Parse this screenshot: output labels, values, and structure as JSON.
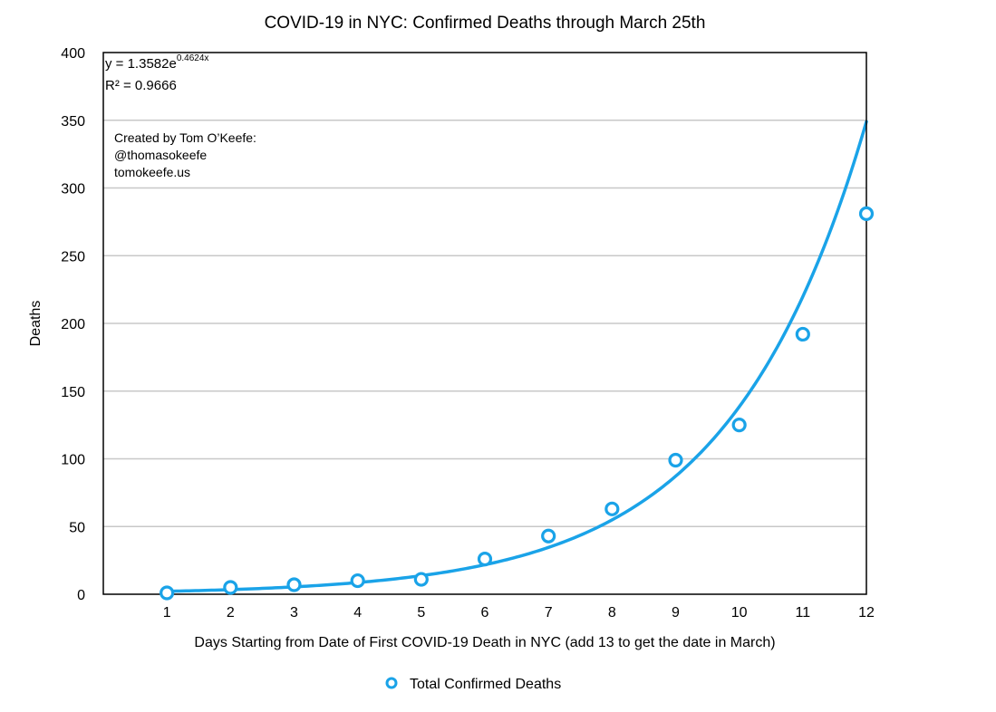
{
  "chart_data": {
    "type": "scatter",
    "title": "COVID-19 in NYC: Confirmed Deaths through March 25th",
    "xlabel": "Days Starting from Date of First COVID-19 Death in NYC (add 13 to get the date in March)",
    "ylabel": "Deaths",
    "x": [
      1,
      2,
      3,
      4,
      5,
      6,
      7,
      8,
      9,
      10,
      11,
      12
    ],
    "series": [
      {
        "name": "Total Confirmed Deaths",
        "values": [
          1,
          5,
          7,
          10,
          11,
          26,
          43,
          63,
          99,
          125,
          192,
          281
        ],
        "color": "#1aa3e8"
      }
    ],
    "trendline": {
      "type": "exponential",
      "a": 1.3582,
      "b": 0.4624,
      "equation_prefix": "y = 1.3582e",
      "equation_exponent": "0.4624x",
      "r_squared_text": "R² = 0.9666",
      "color": "#1aa3e8"
    },
    "xlim": [
      0,
      12
    ],
    "ylim": [
      0,
      400
    ],
    "xticks": [
      1,
      2,
      3,
      4,
      5,
      6,
      7,
      8,
      9,
      10,
      11,
      12
    ],
    "yticks": [
      0,
      50,
      100,
      150,
      200,
      250,
      300,
      350,
      400
    ],
    "grid": true,
    "legend_position": "bottom-center",
    "annotation_lines": [
      "Created by Tom O’Keefe:",
      "@thomasokeefe",
      "tomokeefe.us"
    ],
    "colors": {
      "grid": "#c8c8c8",
      "axis": "#000000"
    }
  }
}
